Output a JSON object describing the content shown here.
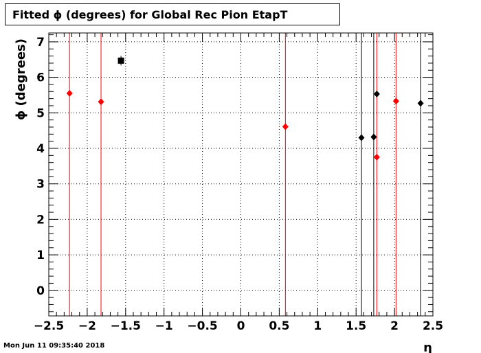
{
  "title": "Fitted ϕ (degrees) for Global Rec Pion EtapT",
  "timestamp": "Mon Jun 11 09:35:40 2018",
  "chart_data": {
    "type": "scatter",
    "title": "Fitted ϕ (degrees) for Global Rec Pion EtapT",
    "xlabel": "η",
    "ylabel": "ϕ (degrees)",
    "xlim": [
      -2.5,
      2.5
    ],
    "ylim": [
      -0.72,
      7.25
    ],
    "x_ticks": [
      -2.5,
      -2,
      -1.5,
      -1,
      -0.5,
      0,
      0.5,
      1,
      1.5,
      2,
      2.5
    ],
    "x_tick_labels": [
      "−2.5",
      "−2",
      "−1.5",
      "−1",
      "−0.5",
      "0",
      "0.5",
      "1",
      "1.5",
      "2",
      "2.5"
    ],
    "y_ticks": [
      0,
      1,
      2,
      3,
      4,
      5,
      6,
      7
    ],
    "y_tick_labels": [
      "0",
      "1",
      "2",
      "3",
      "4",
      "5",
      "6",
      "7"
    ],
    "grid": true,
    "series": [
      {
        "color": "#ff0000",
        "marker": "diamond",
        "points": [
          {
            "x": -2.23,
            "y": 5.55
          },
          {
            "x": -1.82,
            "y": 5.31
          },
          {
            "x": 0.58,
            "y": 4.61
          },
          {
            "x": 1.77,
            "y": 3.75
          },
          {
            "x": 2.02,
            "y": 5.33
          }
        ]
      },
      {
        "color": "#000000",
        "marker": "diamond",
        "points": [
          {
            "x": 1.57,
            "y": 4.3
          },
          {
            "x": 1.73,
            "y": 4.32
          },
          {
            "x": 1.77,
            "y": 5.53
          },
          {
            "x": 2.34,
            "y": 5.27
          }
        ]
      },
      {
        "color": "#000000",
        "marker": "square",
        "points": [
          {
            "x": -1.56,
            "y": 6.47
          }
        ]
      }
    ],
    "vertical_lines": [
      {
        "x": -2.23,
        "color": "#ff0000"
      },
      {
        "x": -1.82,
        "color": "#ff0000"
      },
      {
        "x": 0.58,
        "color": "#ff0000"
      },
      {
        "x": 1.57,
        "color": "#000000"
      },
      {
        "x": 1.73,
        "color": "#000000"
      },
      {
        "x": 1.77,
        "color": "#ff0000"
      },
      {
        "x": 2.02,
        "color": "#ff0000"
      },
      {
        "x": 2.34,
        "color": "#000000"
      }
    ]
  }
}
